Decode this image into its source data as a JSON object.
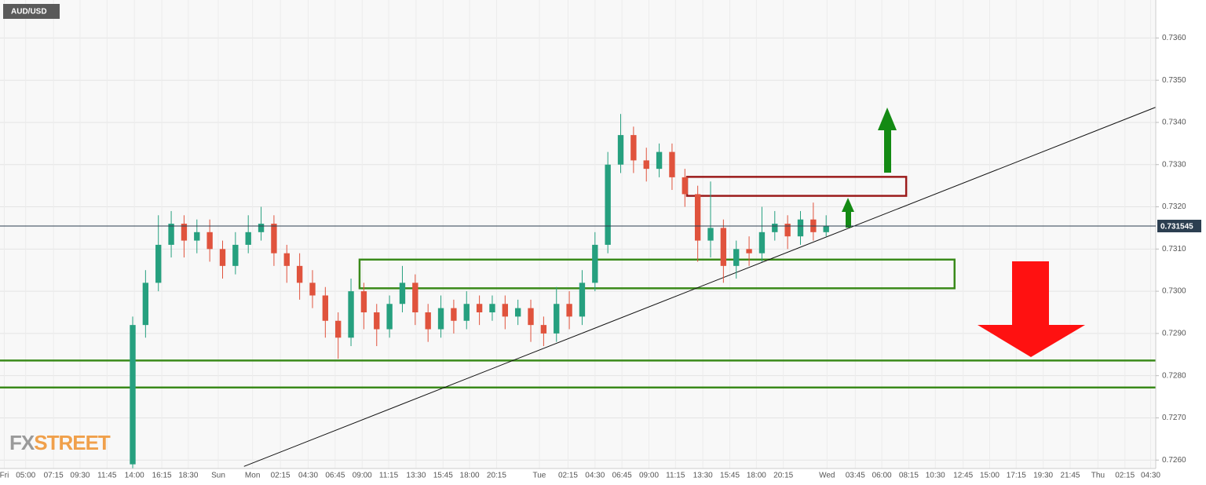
{
  "chart_data": {
    "type": "candlestick",
    "title": "AUD/USD",
    "watermark": {
      "first": "FX",
      "second": "STREET"
    },
    "x": [
      31,
      34,
      37,
      40,
      43,
      46,
      49,
      52,
      55,
      58,
      61,
      64,
      67,
      70,
      73,
      76,
      79,
      82,
      85,
      88,
      91,
      94,
      97,
      100,
      103,
      106,
      109,
      112,
      115,
      118,
      121,
      124,
      127,
      130,
      133,
      136,
      139,
      142,
      145,
      148,
      151,
      154,
      157,
      160,
      163,
      166,
      169,
      172,
      175,
      178,
      181,
      184,
      187,
      190,
      193
    ],
    "open": [
      0.7259,
      0.7292,
      0.7302,
      0.7311,
      0.7316,
      0.7312,
      0.7314,
      0.731,
      0.7306,
      0.7311,
      0.7314,
      0.7316,
      0.7309,
      0.7306,
      0.7302,
      0.7299,
      0.7293,
      0.7289,
      0.73,
      0.7295,
      0.7291,
      0.7297,
      0.7302,
      0.7295,
      0.7291,
      0.7296,
      0.7293,
      0.7297,
      0.7295,
      0.7297,
      0.7294,
      0.7296,
      0.7292,
      0.729,
      0.7297,
      0.7294,
      0.7302,
      0.7311,
      0.733,
      0.7337,
      0.7331,
      0.7329,
      0.7333,
      0.7327,
      0.7323,
      0.7312,
      0.7315,
      0.7306,
      0.731,
      0.7309,
      0.7314,
      0.7316,
      0.7313,
      0.7317,
      0.7314
    ],
    "high": [
      0.7294,
      0.7305,
      0.7318,
      0.7319,
      0.7318,
      0.7317,
      0.7317,
      0.7312,
      0.7314,
      0.7318,
      0.732,
      0.7318,
      0.7311,
      0.7309,
      0.7305,
      0.7301,
      0.7295,
      0.7303,
      0.7302,
      0.7297,
      0.7299,
      0.7306,
      0.7304,
      0.7297,
      0.7299,
      0.7298,
      0.73,
      0.7299,
      0.7299,
      0.7299,
      0.7298,
      0.7298,
      0.7294,
      0.7301,
      0.73,
      0.7305,
      0.7314,
      0.7333,
      0.7342,
      0.7339,
      0.7334,
      0.7335,
      0.7335,
      0.7329,
      0.7325,
      0.7326,
      0.7317,
      0.7312,
      0.7313,
      0.732,
      0.7319,
      0.7318,
      0.7319,
      0.7321,
      0.7318
    ],
    "low": [
      0.7258,
      0.7289,
      0.73,
      0.7308,
      0.7308,
      0.7309,
      0.7307,
      0.7303,
      0.7304,
      0.7309,
      0.7312,
      0.7306,
      0.7302,
      0.7298,
      0.7296,
      0.7289,
      0.7284,
      0.7287,
      0.7291,
      0.7287,
      0.7289,
      0.7295,
      0.7292,
      0.7288,
      0.7289,
      0.729,
      0.7291,
      0.7292,
      0.7293,
      0.7291,
      0.7292,
      0.7288,
      0.7287,
      0.7288,
      0.7291,
      0.7292,
      0.73,
      0.7309,
      0.7328,
      0.7328,
      0.7326,
      0.7327,
      0.7324,
      0.732,
      0.7307,
      0.7308,
      0.7302,
      0.7303,
      0.7306,
      0.7307,
      0.7312,
      0.731,
      0.7311,
      0.7312,
      0.7313
    ],
    "close": [
      0.7292,
      0.7302,
      0.7311,
      0.7316,
      0.7312,
      0.7314,
      0.731,
      0.7306,
      0.7311,
      0.7314,
      0.7316,
      0.7309,
      0.7306,
      0.7302,
      0.7299,
      0.7293,
      0.7289,
      0.73,
      0.7295,
      0.7291,
      0.7297,
      0.7302,
      0.7295,
      0.7291,
      0.7296,
      0.7293,
      0.7297,
      0.7295,
      0.7297,
      0.7294,
      0.7296,
      0.7292,
      0.729,
      0.7297,
      0.7294,
      0.7302,
      0.7311,
      0.733,
      0.7337,
      0.7331,
      0.7329,
      0.7333,
      0.7327,
      0.7323,
      0.7312,
      0.7315,
      0.7306,
      0.731,
      0.7309,
      0.7314,
      0.7316,
      0.7313,
      0.7317,
      0.7314,
      0.731545
    ],
    "up_color": "#26a07f",
    "down_color": "#e0533d",
    "last_price": 0.731545,
    "xlim": [
      0,
      270
    ],
    "ylim": [
      0.7258,
      0.7369
    ],
    "yticks": [
      {
        "value": 0.726,
        "label": "0.7260"
      },
      {
        "value": 0.727,
        "label": "0.7270"
      },
      {
        "value": 0.728,
        "label": "0.7280"
      },
      {
        "value": 0.729,
        "label": "0.7290"
      },
      {
        "value": 0.73,
        "label": "0.7300"
      },
      {
        "value": 0.731,
        "label": "0.7310"
      },
      {
        "value": 0.732,
        "label": "0.7320"
      },
      {
        "value": 0.733,
        "label": "0.7330"
      },
      {
        "value": 0.734,
        "label": "0.7340"
      },
      {
        "value": 0.735,
        "label": "0.7350"
      },
      {
        "value": 0.736,
        "label": "0.7360"
      }
    ],
    "xticks": [
      {
        "value": 1,
        "label": "Fri"
      },
      {
        "value": 6,
        "label": "05:00"
      },
      {
        "value": 12.5,
        "label": "07:15"
      },
      {
        "value": 18.7,
        "label": "09:30"
      },
      {
        "value": 25,
        "label": "11:45"
      },
      {
        "value": 31.4,
        "label": "14:00"
      },
      {
        "value": 37.8,
        "label": "16:15"
      },
      {
        "value": 44,
        "label": "18:30"
      },
      {
        "value": 51,
        "label": "Sun"
      },
      {
        "value": 59,
        "label": "Mon"
      },
      {
        "value": 65.5,
        "label": "02:15"
      },
      {
        "value": 72,
        "label": "04:30"
      },
      {
        "value": 78.3,
        "label": "06:45"
      },
      {
        "value": 84.6,
        "label": "09:00"
      },
      {
        "value": 90.8,
        "label": "11:15"
      },
      {
        "value": 97.2,
        "label": "13:30"
      },
      {
        "value": 103.5,
        "label": "15:45"
      },
      {
        "value": 109.7,
        "label": "18:00"
      },
      {
        "value": 116,
        "label": "20:15"
      },
      {
        "value": 126,
        "label": "Tue"
      },
      {
        "value": 132.7,
        "label": "02:15"
      },
      {
        "value": 139,
        "label": "04:30"
      },
      {
        "value": 145.3,
        "label": "06:45"
      },
      {
        "value": 151.6,
        "label": "09:00"
      },
      {
        "value": 157.8,
        "label": "11:15"
      },
      {
        "value": 164.2,
        "label": "13:30"
      },
      {
        "value": 170.5,
        "label": "15:45"
      },
      {
        "value": 176.7,
        "label": "18:00"
      },
      {
        "value": 183,
        "label": "20:15"
      },
      {
        "value": 193.2,
        "label": "Wed"
      },
      {
        "value": 199.8,
        "label": "03:45"
      },
      {
        "value": 206,
        "label": "06:00"
      },
      {
        "value": 212.3,
        "label": "08:15"
      },
      {
        "value": 218.5,
        "label": "10:30"
      },
      {
        "value": 225,
        "label": "12:45"
      },
      {
        "value": 231.2,
        "label": "15:00"
      },
      {
        "value": 237.4,
        "label": "17:15"
      },
      {
        "value": 243.7,
        "label": "19:30"
      },
      {
        "value": 250,
        "label": "21:45"
      },
      {
        "value": 256.5,
        "label": "Thu"
      },
      {
        "value": 262.8,
        "label": "02:15"
      },
      {
        "value": 268.8,
        "label": "04:30"
      }
    ],
    "grid": true,
    "trendline": {
      "x": [
        57,
        270
      ],
      "y": [
        0.72585,
        0.73436
      ],
      "color": "#111111"
    },
    "levels": {
      "values": [
        0.72836,
        0.72772
      ],
      "color": "#3a8a1a"
    },
    "zones": [
      {
        "x": [
          84,
          223
        ],
        "y": [
          0.73007,
          0.73075
        ],
        "color": "#3a8a1a"
      },
      {
        "x": [
          160.5,
          211.7
        ],
        "y": [
          0.73226,
          0.73271
        ],
        "color": "#9b1b1b"
      }
    ]
  }
}
